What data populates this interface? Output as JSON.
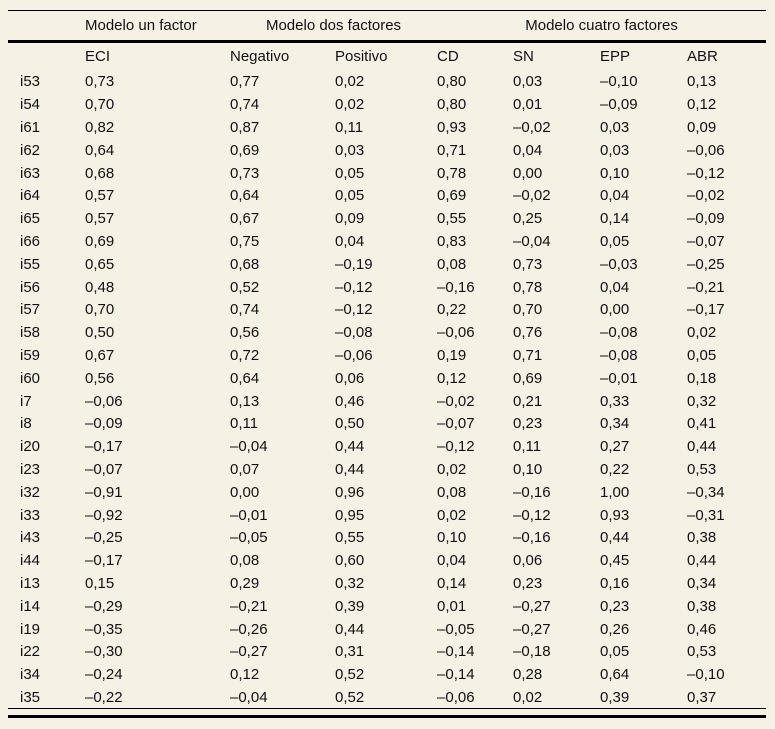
{
  "page": {
    "background_color": "#f5f1e5",
    "text_color": "#111111",
    "rule_color": "#000000"
  },
  "table": {
    "group_header": {
      "un_factor": "Modelo un factor",
      "dos_factores": "Modelo dos factores",
      "cuatro_factores": "Modelo cuatro factores"
    },
    "columns": [
      "ECI",
      "Negativo",
      "Positivo",
      "CD",
      "SN",
      "EPP",
      "ABR"
    ],
    "rows": [
      {
        "item": "i53",
        "values": [
          "0,73",
          "0,77",
          "0,02",
          "0,80",
          "0,03",
          "–0,10",
          "0,13"
        ]
      },
      {
        "item": "i54",
        "values": [
          "0,70",
          "0,74",
          "0,02",
          "0,80",
          "0,01",
          "–0,09",
          "0,12"
        ]
      },
      {
        "item": "i61",
        "values": [
          "0,82",
          "0,87",
          "0,11",
          "0,93",
          "–0,02",
          "0,03",
          "0,09"
        ]
      },
      {
        "item": "i62",
        "values": [
          "0,64",
          "0,69",
          "0,03",
          "0,71",
          "0,04",
          "0,03",
          "–0,06"
        ]
      },
      {
        "item": "i63",
        "values": [
          "0,68",
          "0,73",
          "0,05",
          "0,78",
          "0,00",
          "0,10",
          "–0,12"
        ]
      },
      {
        "item": "i64",
        "values": [
          "0,57",
          "0,64",
          "0,05",
          "0,69",
          "–0,02",
          "0,04",
          "–0,02"
        ]
      },
      {
        "item": "i65",
        "values": [
          "0,57",
          "0,67",
          "0,09",
          "0,55",
          "0,25",
          "0,14",
          "–0,09"
        ]
      },
      {
        "item": "i66",
        "values": [
          "0,69",
          "0,75",
          "0,04",
          "0,83",
          "–0,04",
          "0,05",
          "–0,07"
        ]
      },
      {
        "item": "i55",
        "values": [
          "0,65",
          "0,68",
          "–0,19",
          "0,08",
          "0,73",
          "–0,03",
          "–0,25"
        ]
      },
      {
        "item": "i56",
        "values": [
          "0,48",
          "0,52",
          "–0,12",
          "–0,16",
          "0,78",
          "0,04",
          "–0,21"
        ]
      },
      {
        "item": "i57",
        "values": [
          "0,70",
          "0,74",
          "–0,12",
          "0,22",
          "0,70",
          "0,00",
          "–0,17"
        ]
      },
      {
        "item": "i58",
        "values": [
          "0,50",
          "0,56",
          "–0,08",
          "–0,06",
          "0,76",
          "–0,08",
          "0,02"
        ]
      },
      {
        "item": "i59",
        "values": [
          "0,67",
          "0,72",
          "–0,06",
          "0,19",
          "0,71",
          "–0,08",
          "0,05"
        ]
      },
      {
        "item": "i60",
        "values": [
          "0,56",
          "0,64",
          "0,06",
          "0,12",
          "0,69",
          "–0,01",
          "0,18"
        ]
      },
      {
        "item": "i7",
        "values": [
          "–0,06",
          "0,13",
          "0,46",
          "–0,02",
          "0,21",
          "0,33",
          "0,32"
        ]
      },
      {
        "item": "i8",
        "values": [
          "–0,09",
          "0,11",
          "0,50",
          "–0,07",
          "0,23",
          "0,34",
          "0,41"
        ]
      },
      {
        "item": "i20",
        "values": [
          "–0,17",
          "–0,04",
          "0,44",
          "–0,12",
          "0,11",
          "0,27",
          "0,44"
        ]
      },
      {
        "item": "i23",
        "values": [
          "–0,07",
          "0,07",
          "0,44",
          "0,02",
          "0,10",
          "0,22",
          "0,53"
        ]
      },
      {
        "item": "i32",
        "values": [
          "–0,91",
          "0,00",
          "0,96",
          "0,08",
          "–0,16",
          "1,00",
          "–0,34"
        ]
      },
      {
        "item": "i33",
        "values": [
          "–0,92",
          "–0,01",
          "0,95",
          "0,02",
          "–0,12",
          "0,93",
          "–0,31"
        ]
      },
      {
        "item": "i43",
        "values": [
          "–0,25",
          "–0,05",
          "0,55",
          "0,10",
          "–0,16",
          "0,44",
          "0,38"
        ]
      },
      {
        "item": "i44",
        "values": [
          "–0,17",
          "0,08",
          "0,60",
          "0,04",
          "0,06",
          "0,45",
          "0,44"
        ]
      },
      {
        "item": "i13",
        "values": [
          "0,15",
          "0,29",
          "0,32",
          "0,14",
          "0,23",
          "0,16",
          "0,34"
        ]
      },
      {
        "item": "i14",
        "values": [
          "–0,29",
          "–0,21",
          "0,39",
          "0,01",
          "–0,27",
          "0,23",
          "0,38"
        ]
      },
      {
        "item": "i19",
        "values": [
          "–0,35",
          "–0,26",
          "0,44",
          "–0,05",
          "–0,27",
          "0,26",
          "0,46"
        ]
      },
      {
        "item": "i22",
        "values": [
          "–0,30",
          "–0,27",
          "0,31",
          "–0,14",
          "–0,18",
          "0,05",
          "0,53"
        ]
      },
      {
        "item": "i34",
        "values": [
          "–0,24",
          "0,12",
          "0,52",
          "–0,14",
          "0,28",
          "0,64",
          "–0,10"
        ]
      },
      {
        "item": "i35",
        "values": [
          "–0,22",
          "–0,04",
          "0,52",
          "–0,06",
          "0,02",
          "0,39",
          "0,37"
        ]
      }
    ]
  }
}
